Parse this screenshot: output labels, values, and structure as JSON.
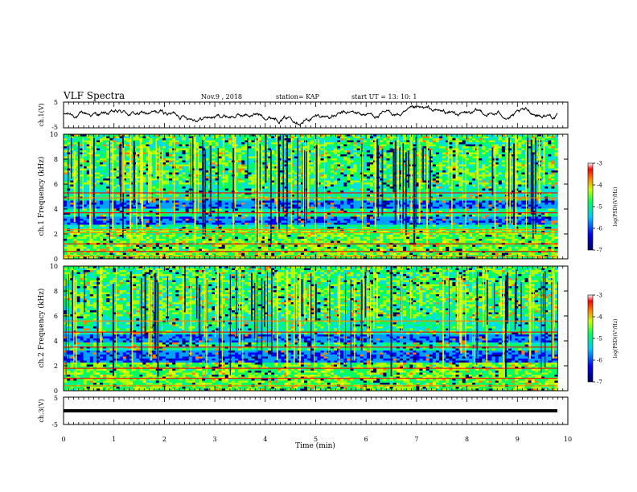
{
  "header": {
    "title": "VLF Spectra",
    "date": "Nov.9 , 2018",
    "station": "station= KAP",
    "start_time": "start UT = 13: 10: 1"
  },
  "chart_data": [
    {
      "id": "ch1_waveform",
      "type": "line",
      "ylabel": "ch.1(V)",
      "ylim": [
        -5,
        5
      ],
      "y_ticks": [
        "5",
        "-5"
      ],
      "xlim": [
        0,
        10
      ],
      "trace_extent_min": 9.8,
      "trace_color": "#000000"
    },
    {
      "id": "ch1_spectrogram",
      "type": "heatmap",
      "ylabel": "ch.1 Frequency (kHz)",
      "ylim": [
        0,
        10
      ],
      "y_ticks": [
        "0",
        "2",
        "4",
        "6",
        "8",
        "10"
      ],
      "xlim": [
        0,
        10
      ],
      "colorbar": {
        "label": "log(PSD)(V²/Hz)",
        "range": [
          -7,
          -3
        ],
        "ticks": [
          "-3",
          "-4",
          "-5",
          "-6",
          "-7"
        ]
      },
      "noise_bands_khz": [
        [
          2.7,
          3.4
        ],
        [
          4.0,
          4.6
        ]
      ],
      "lines_khz": [
        0.2,
        0.6,
        1.2,
        2.1,
        2.35,
        3.7,
        4.9,
        5.3
      ]
    },
    {
      "id": "ch2_spectrogram",
      "type": "heatmap",
      "ylabel": "ch.2 Frequency (kHz)",
      "ylim": [
        0,
        10
      ],
      "y_ticks": [
        "0",
        "2",
        "4",
        "6",
        "8",
        "10"
      ],
      "xlim": [
        0,
        10
      ],
      "colorbar": {
        "label": "log(PSD)(V²/Hz)",
        "range": [
          -7,
          -3
        ],
        "ticks": [
          "-3",
          "-4",
          "-5",
          "-6",
          "-7"
        ]
      },
      "noise_bands_khz": [
        [
          2.3,
          3.3
        ],
        [
          3.8,
          4.5
        ]
      ],
      "lines_khz": [
        0.4,
        1.0,
        1.8,
        3.5,
        4.7,
        5.6
      ]
    },
    {
      "id": "ch3_waveform",
      "type": "line",
      "ylabel": "ch.3(V)",
      "ylim": [
        -5,
        5
      ],
      "y_ticks": [
        "5",
        "-5"
      ],
      "xlim": [
        0,
        10
      ],
      "constant_value": 0,
      "trace_color": "#000000"
    }
  ],
  "x_axis": {
    "label": "Time (min)",
    "ticks": [
      "0",
      "1",
      "2",
      "3",
      "4",
      "5",
      "6",
      "7",
      "8",
      "9",
      "10"
    ]
  },
  "colormap": [
    "#000066",
    "#0000ff",
    "#00a0ff",
    "#00e0e0",
    "#00ff60",
    "#b0ff00",
    "#ffff00",
    "#ff8000",
    "#ff0000",
    "#ffffff"
  ]
}
